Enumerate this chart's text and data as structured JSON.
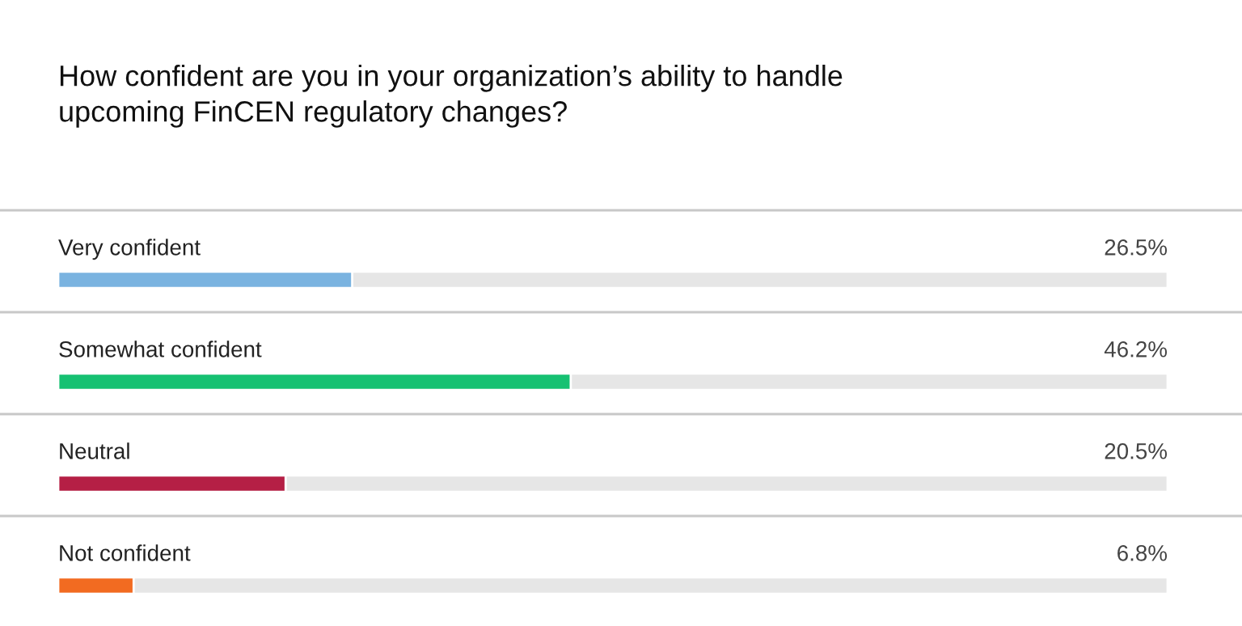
{
  "chart_data": {
    "type": "bar",
    "orientation": "horizontal",
    "title": "How confident are you in your organization’s ability to handle\nupcoming FinCEN regulatory changes?",
    "categories": [
      "Very confident",
      "Somewhat confident",
      "Neutral",
      "Not confident"
    ],
    "values": [
      26.5,
      46.2,
      20.5,
      6.8
    ],
    "colors": [
      "#7ab3e0",
      "#16c172",
      "#b51f45",
      "#f26b21"
    ],
    "value_labels": [
      "26.5%",
      "46.2%",
      "20.5%",
      "6.8%"
    ],
    "xlim": [
      0,
      100
    ],
    "tick_labels": false
  }
}
